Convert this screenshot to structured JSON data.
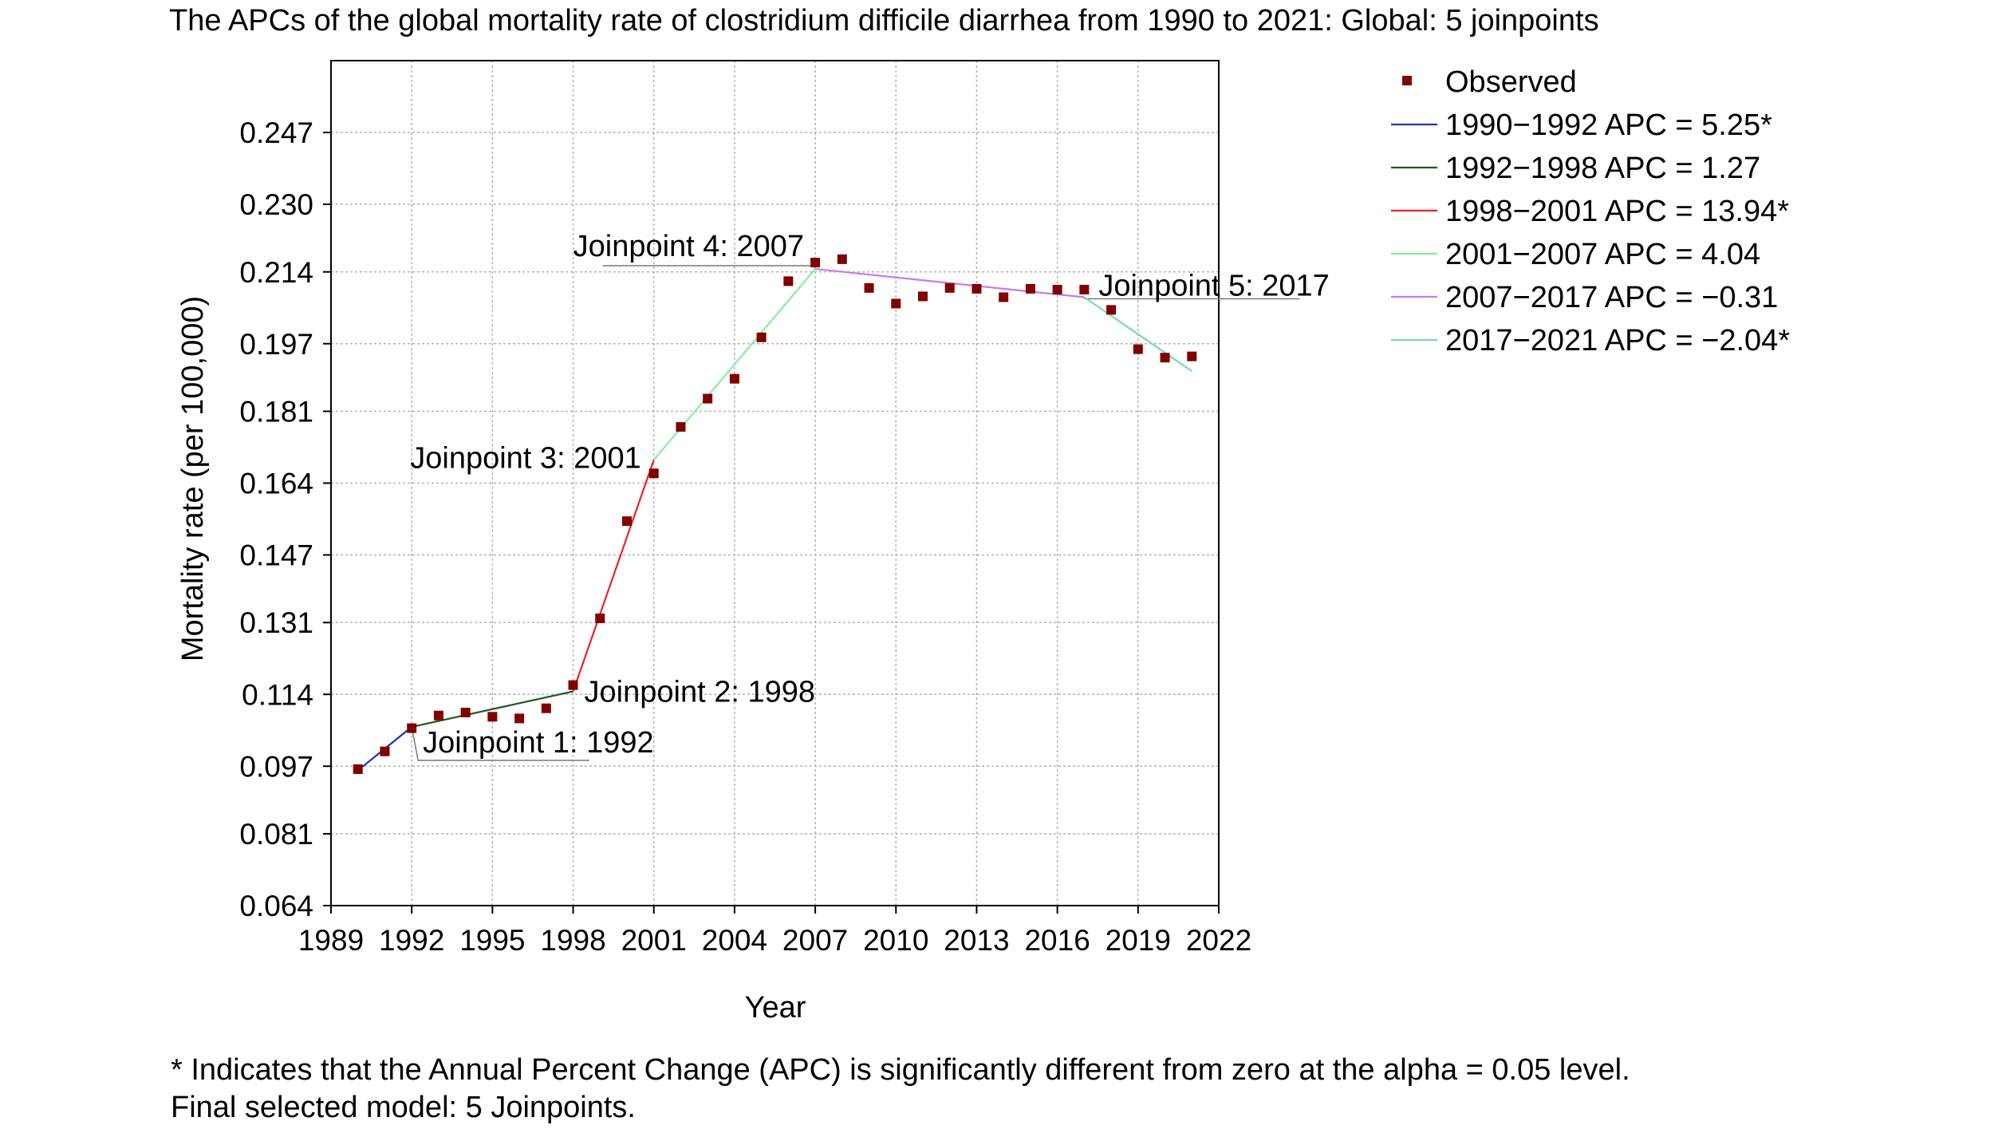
{
  "chart_data": {
    "type": "line",
    "title": "The APCs of the global mortality rate of clostridium difficile diarrhea from 1990 to 2021: Global: 5 joinpoints",
    "xlabel": "Year",
    "ylabel": "Mortality rate (per 100,000)",
    "xlim": [
      1989,
      2022
    ],
    "ylim": [
      0.064,
      0.264
    ],
    "x_ticks": [
      1989,
      1992,
      1995,
      1998,
      2001,
      2004,
      2007,
      2010,
      2013,
      2016,
      2019,
      2022
    ],
    "y_ticks": [
      0.064,
      0.081,
      0.097,
      0.114,
      0.131,
      0.147,
      0.164,
      0.181,
      0.197,
      0.214,
      0.23,
      0.247
    ],
    "y_tick_labels": [
      "0.064",
      "0.081",
      "0.097",
      "0.114",
      "0.131",
      "0.147",
      "0.164",
      "0.181",
      "0.197",
      "0.214",
      "0.230",
      "0.247"
    ],
    "grid": true,
    "legend_position": "right",
    "observed": {
      "name": "Observed",
      "color": "#800000",
      "x": [
        1990,
        1991,
        1992,
        1993,
        1994,
        1995,
        1996,
        1997,
        1998,
        1999,
        2000,
        2001,
        2002,
        2003,
        2004,
        2005,
        2006,
        2007,
        2008,
        2009,
        2010,
        2011,
        2012,
        2013,
        2014,
        2015,
        2016,
        2017,
        2018,
        2019,
        2020,
        2021
      ],
      "y": [
        0.0963,
        0.1005,
        0.106,
        0.109,
        0.1097,
        0.1087,
        0.1083,
        0.1107,
        0.1162,
        0.132,
        0.155,
        0.1663,
        0.1773,
        0.184,
        0.1887,
        0.1985,
        0.2118,
        0.2162,
        0.217,
        0.2102,
        0.2065,
        0.2082,
        0.2102,
        0.21,
        0.208,
        0.21,
        0.2098,
        0.2098,
        0.205,
        0.1957,
        0.1937,
        0.194
      ]
    },
    "series": [
      {
        "name": "1990−1992 APC = 5.25*",
        "color": "#1f2fbf",
        "x": [
          1990,
          1992
        ],
        "y": [
          0.096,
          0.1063
        ]
      },
      {
        "name": "1992−1998 APC = 1.27",
        "color": "#1e5a1e",
        "x": [
          1992,
          1998
        ],
        "y": [
          0.1063,
          0.1147
        ]
      },
      {
        "name": "1998−2001 APC = 13.94*",
        "color": "#ee2222",
        "x": [
          1998,
          2001
        ],
        "y": [
          0.1147,
          0.1695
        ]
      },
      {
        "name": "2001−2007 APC = 4.04",
        "color": "#88ee99",
        "x": [
          2001,
          2007
        ],
        "y": [
          0.1695,
          0.2147
        ]
      },
      {
        "name": "2007−2017 APC = −0.31",
        "color": "#cc77ee",
        "x": [
          2007,
          2017
        ],
        "y": [
          0.2147,
          0.208
        ]
      },
      {
        "name": "2017−2021 APC = −2.04*",
        "color": "#77ddaa",
        "x": [
          2017,
          2021
        ],
        "y": [
          0.208,
          0.1905
        ]
      }
    ],
    "annotations": [
      {
        "text": "Joinpoint 1: 1992",
        "x": 1992,
        "y": 0.1063
      },
      {
        "text": "Joinpoint 2: 1998",
        "x": 1998,
        "y": 0.1147
      },
      {
        "text": "Joinpoint 3: 2001",
        "x": 2001,
        "y": 0.1695
      },
      {
        "text": "Joinpoint 4: 2007",
        "x": 2007,
        "y": 0.2147
      },
      {
        "text": "Joinpoint 5: 2017",
        "x": 2017,
        "y": 0.208
      }
    ]
  },
  "footnotes": [
    "* Indicates that the Annual Percent Change (APC) is significantly different from zero at the alpha = 0.05 level.",
    "Final selected model: 5 Joinpoints."
  ]
}
